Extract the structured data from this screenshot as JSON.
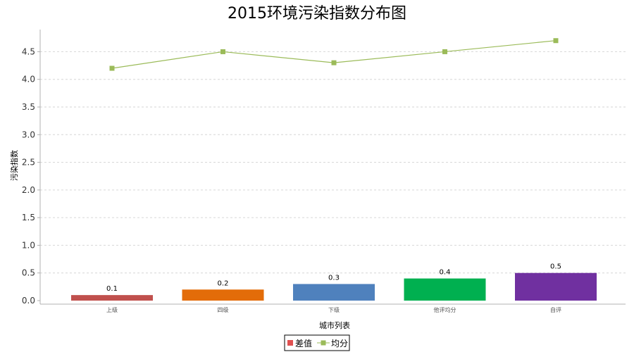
{
  "chart_data": {
    "type": "bar",
    "title": "2015环境污染指数分布图",
    "xlabel": "城市列表",
    "ylabel": "污染指数",
    "categories": [
      "上级",
      "四级",
      "下级",
      "他评均分",
      "自评"
    ],
    "ylim": [
      0,
      4.9
    ],
    "yticks": [
      0.0,
      0.5,
      1.0,
      1.5,
      2.0,
      2.5,
      3.0,
      3.5,
      4.0,
      4.5
    ],
    "ytick_labels": [
      "0.0",
      "0.5",
      "1.0",
      "1.5",
      "2.0",
      "2.5",
      "3.0",
      "3.5",
      "4.0",
      "4.5"
    ],
    "grid": true,
    "legend_position": "bottom",
    "series": [
      {
        "name": "差值",
        "kind": "bar",
        "values": [
          0.1,
          0.2,
          0.3,
          0.4,
          0.5
        ],
        "value_labels": [
          "0.1",
          "0.2",
          "0.3",
          "0.4",
          "0.5"
        ],
        "colors": [
          "#c0504d",
          "#e36c09",
          "#4f81bd",
          "#00b050",
          "#7030a0"
        ],
        "legend_color": "#e05050"
      },
      {
        "name": "均分",
        "kind": "line",
        "values": [
          4.2,
          4.5,
          4.3,
          4.5,
          4.7
        ],
        "color": "#9bbb59"
      }
    ]
  }
}
